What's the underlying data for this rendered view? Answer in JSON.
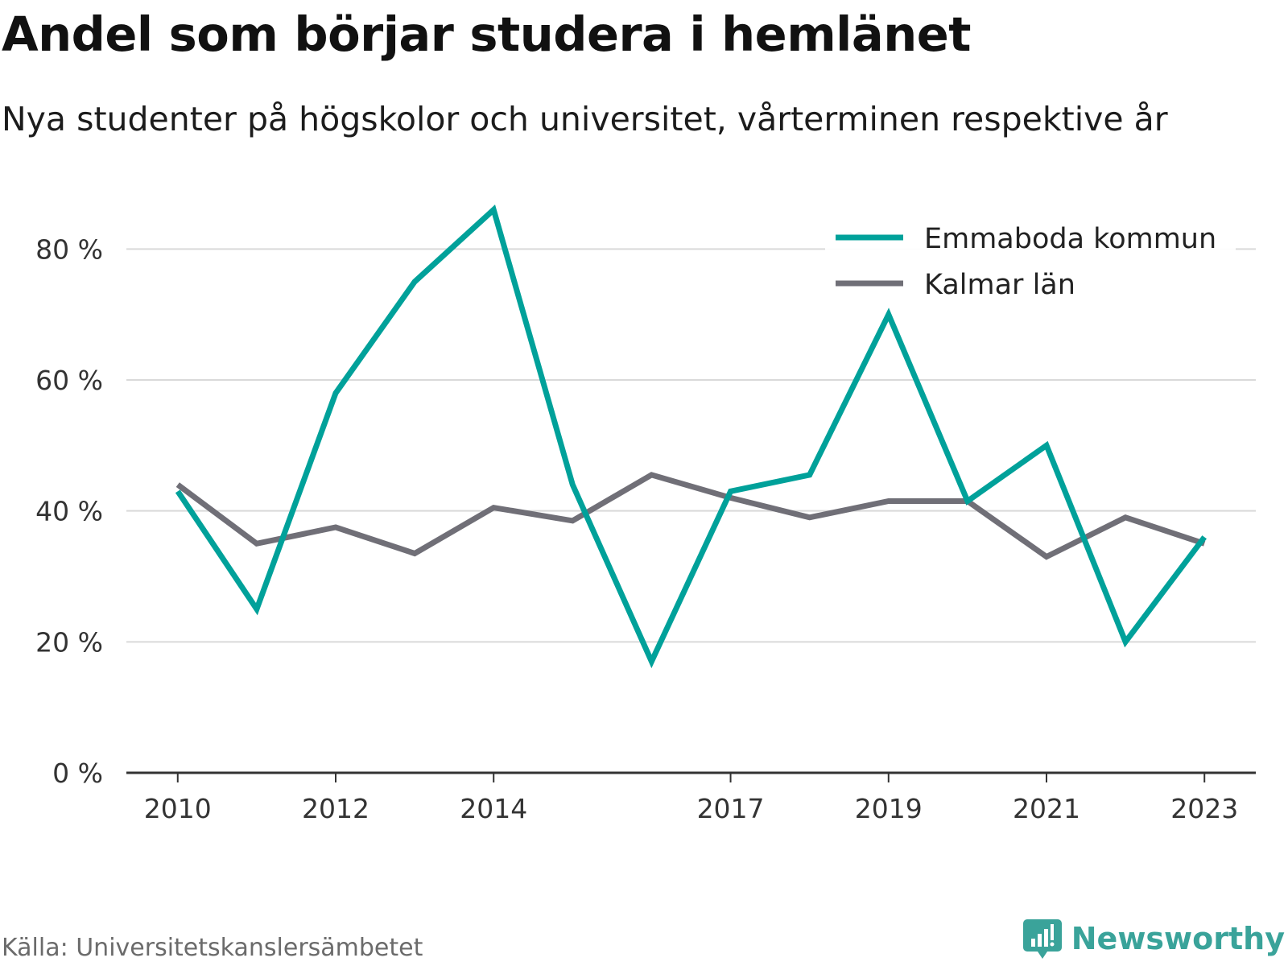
{
  "title": "Andel som börjar studera i hemlänet",
  "subtitle": "Nya studenter på högskolor och universitet, vårterminen respektive år",
  "source": "Källa: Universitetskanslersämbetet",
  "brand": "Newsworthy",
  "colors": {
    "emmaboda": "#00a19a",
    "kalmar": "#706f77",
    "grid": "#d9d9d9",
    "axis": "#333333",
    "brand": "#3aa39a"
  },
  "chart_data": {
    "type": "line",
    "x": [
      2010,
      2011,
      2012,
      2013,
      2014,
      2015,
      2016,
      2017,
      2018,
      2019,
      2020,
      2021,
      2022,
      2023
    ],
    "x_tick_labels": [
      "2010",
      "2012",
      "2014",
      "2017",
      "2019",
      "2021",
      "2023"
    ],
    "y_tick_labels": [
      "0 %",
      "20 %",
      "40 %",
      "60 %",
      "80 %"
    ],
    "y_ticks": [
      0,
      20,
      40,
      60,
      80
    ],
    "ylim": [
      0,
      90
    ],
    "xlim": [
      2009.35,
      2023.65
    ],
    "grid": true,
    "legend_position": "top-right",
    "series": [
      {
        "name": "Emmaboda kommun",
        "color": "#00a19a",
        "values": [
          43,
          25,
          58,
          75,
          86,
          44,
          17,
          43,
          45.5,
          70,
          41.5,
          50,
          20,
          36
        ]
      },
      {
        "name": "Kalmar län",
        "color": "#706f77",
        "values": [
          44,
          35,
          37.5,
          33.5,
          40.5,
          38.5,
          45.5,
          42,
          39,
          41.5,
          41.5,
          33,
          39,
          35
        ]
      }
    ]
  }
}
